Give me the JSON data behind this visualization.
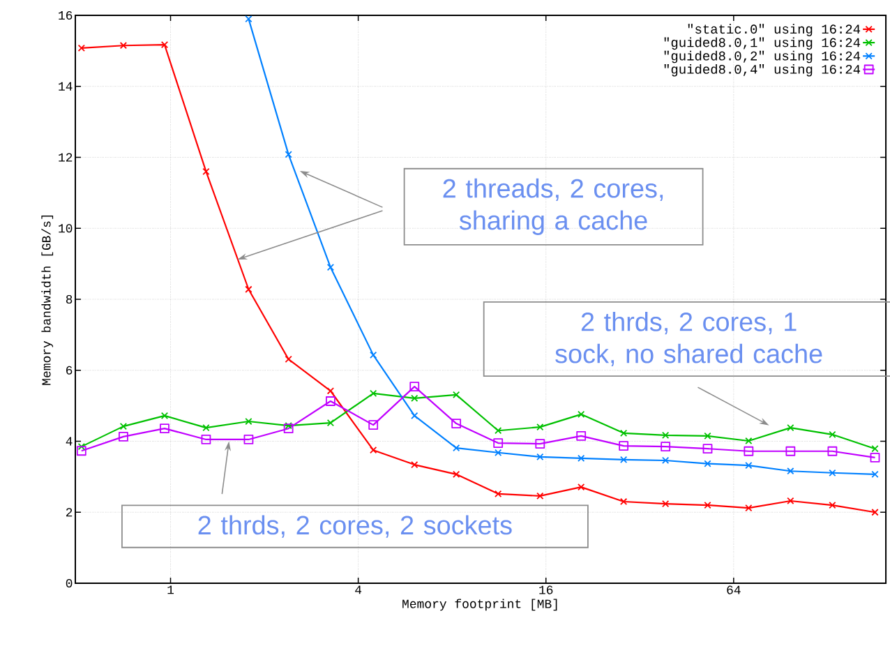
{
  "chart_data": {
    "type": "line",
    "xlabel": "Memory footprint [MB]",
    "ylabel": "Memory bandwidth [GB/s]",
    "x": [
      0.518,
      0.706,
      0.957,
      1.3,
      1.78,
      2.39,
      3.26,
      4.47,
      6.06,
      8.25,
      11.24,
      15.32,
      20.75,
      28.4,
      38.7,
      52.8,
      71.5,
      97.4,
      132.7,
      181.8
    ],
    "series": [
      {
        "name": "\"static.0\" using 16:24",
        "color": "#ff0000",
        "marker": "cross",
        "values": [
          15.08,
          15.15,
          15.17,
          11.6,
          8.28,
          6.31,
          5.42,
          3.75,
          3.34,
          3.07,
          2.52,
          2.46,
          2.71,
          2.3,
          2.24,
          2.2,
          2.12,
          2.32,
          2.2,
          2.0
        ]
      },
      {
        "name": "\"guided8.0,1\" using 16:24",
        "color": "#00c000",
        "marker": "cross",
        "values": [
          3.85,
          4.42,
          4.72,
          4.38,
          4.56,
          4.44,
          4.52,
          5.35,
          5.21,
          5.31,
          4.3,
          4.4,
          4.76,
          4.23,
          4.17,
          4.15,
          4.01,
          4.38,
          4.19,
          3.79
        ]
      },
      {
        "name": "\"guided8.0,2\" using 16:24",
        "color": "#0080ff",
        "marker": "cross",
        "x": [
          1.78,
          2.39,
          3.26,
          4.47,
          6.06,
          8.25,
          11.24,
          15.32,
          20.75,
          28.4,
          38.7,
          52.8,
          71.5,
          97.4,
          132.7,
          181.8
        ],
        "values": [
          15.9,
          12.08,
          8.9,
          6.43,
          4.72,
          3.81,
          3.68,
          3.56,
          3.52,
          3.48,
          3.46,
          3.37,
          3.32,
          3.16,
          3.11,
          3.07
        ]
      },
      {
        "name": "\"guided8.0,4\" using 16:24",
        "color": "#c000ff",
        "marker": "square",
        "values": [
          3.73,
          4.13,
          4.36,
          4.05,
          4.05,
          4.36,
          5.13,
          4.46,
          5.54,
          4.5,
          3.95,
          3.93,
          4.15,
          3.87,
          3.85,
          3.79,
          3.72,
          3.72,
          3.72,
          3.54
        ]
      }
    ],
    "log": "x",
    "xlim": [
      0.495,
      197
    ],
    "xticks": [
      1,
      4,
      16,
      64
    ],
    "ylim": [
      0,
      16
    ],
    "yticks": [
      0,
      2,
      4,
      6,
      8,
      10,
      12,
      14,
      16
    ],
    "grid": true,
    "legend": "top right",
    "line_style": "solid",
    "annotations": [
      "2 threads, 2 cores, sharing a cache",
      "2 thrds, 2 cores, 1 sock, no shared cache",
      {
        "text": "2 thrds, 2 cores, 2 sockets",
        "x": 1.54,
        "y": 4.0
      }
    ]
  }
}
